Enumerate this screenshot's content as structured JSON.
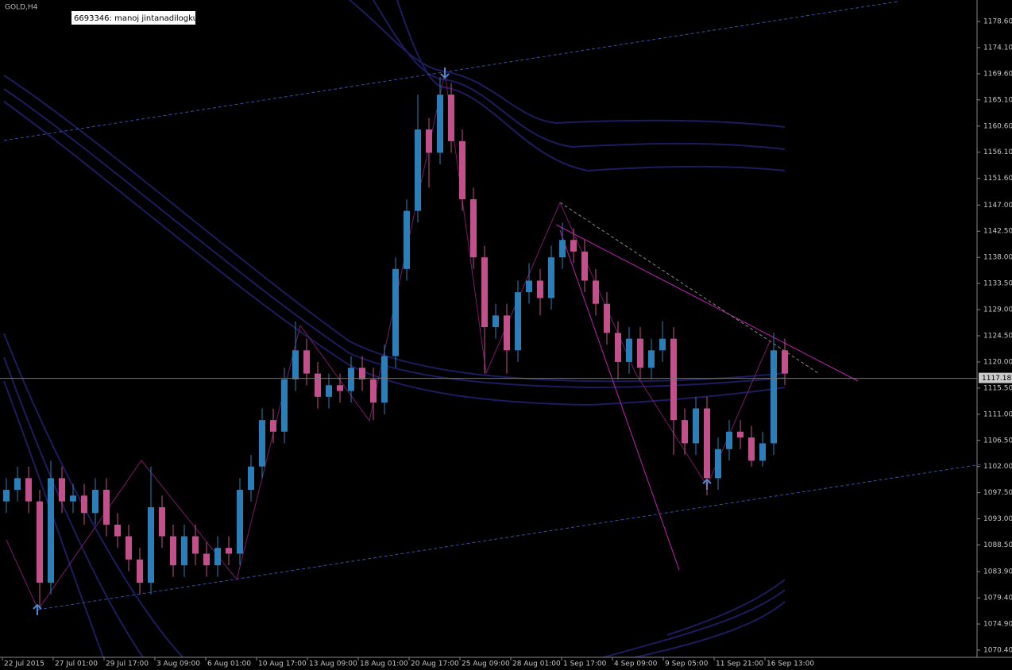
{
  "window": {
    "symbol": "GOLD,H4",
    "account": "6693346: manoj jintanadilogkul"
  },
  "chart_data": {
    "type": "candlestick",
    "open": [
      1096,
      1098,
      1100,
      1096,
      1082,
      1100,
      1096,
      1097,
      1094,
      1098,
      1092,
      1090,
      1086,
      1082,
      1095,
      1090,
      1085,
      1090,
      1087,
      1085,
      1088,
      1087,
      1098,
      1102,
      1110,
      1108,
      1117,
      1122,
      1118,
      1114,
      1116,
      1115,
      1119,
      1117,
      1113,
      1121,
      1136,
      1146,
      1160,
      1156,
      1166,
      1158,
      1148,
      1138,
      1126,
      1128,
      1122,
      1132,
      1134,
      1131,
      1138,
      1141,
      1139,
      1134,
      1130,
      1125,
      1120,
      1124,
      1119,
      1122,
      1124,
      1110,
      1106,
      1112,
      1100,
      1105,
      1108,
      1107,
      1103,
      1106,
      1122
    ],
    "high": [
      1100,
      1102,
      1102,
      1098,
      1103,
      1102,
      1099,
      1099,
      1100,
      1100,
      1094,
      1092,
      1088,
      1102,
      1097,
      1092,
      1092,
      1092,
      1089,
      1090,
      1090,
      1100,
      1104,
      1112,
      1112,
      1119,
      1127,
      1124,
      1120,
      1118,
      1118,
      1121,
      1121,
      1119,
      1123,
      1138,
      1148,
      1166,
      1162,
      1169,
      1168,
      1160,
      1150,
      1140,
      1130,
      1130,
      1134,
      1137,
      1136,
      1140,
      1144,
      1143,
      1141,
      1136,
      1132,
      1127,
      1126,
      1126,
      1124,
      1127,
      1126,
      1112,
      1114,
      1114,
      1107,
      1110,
      1110,
      1109,
      1108,
      1125,
      1124
    ],
    "low": [
      1094,
      1096,
      1094,
      1078,
      1080,
      1094,
      1094,
      1092,
      1092,
      1090,
      1088,
      1084,
      1080,
      1080,
      1088,
      1083,
      1083,
      1085,
      1083,
      1083,
      1085,
      1085,
      1096,
      1100,
      1106,
      1106,
      1115,
      1116,
      1112,
      1112,
      1113,
      1113,
      1115,
      1110,
      1111,
      1119,
      1134,
      1144,
      1150,
      1154,
      1156,
      1146,
      1136,
      1118,
      1124,
      1118,
      1120,
      1130,
      1128,
      1129,
      1136,
      1137,
      1132,
      1128,
      1123,
      1117,
      1118,
      1117,
      1117,
      1120,
      1104,
      1104,
      1104,
      1097,
      1098,
      1103,
      1105,
      1102,
      1102,
      1104,
      1116
    ],
    "close": [
      1098,
      1100,
      1096,
      1082,
      1100,
      1096,
      1097,
      1094,
      1098,
      1092,
      1090,
      1086,
      1082,
      1095,
      1090,
      1085,
      1090,
      1087,
      1085,
      1088,
      1087,
      1098,
      1102,
      1110,
      1108,
      1117,
      1122,
      1118,
      1114,
      1116,
      1115,
      1119,
      1117,
      1113,
      1121,
      1136,
      1146,
      1160,
      1156,
      1166,
      1158,
      1148,
      1138,
      1126,
      1128,
      1122,
      1132,
      1134,
      1131,
      1138,
      1141,
      1139,
      1134,
      1130,
      1125,
      1120,
      1124,
      1119,
      1122,
      1124,
      1110,
      1106,
      1112,
      1100,
      1105,
      1108,
      1107,
      1103,
      1106,
      1122,
      1118
    ],
    "up_color": "#2a7fb8",
    "down_color": "#c2508a",
    "ylim": [
      1069.17,
      1182.29
    ],
    "yticks": [
      {
        "value": 1178.6,
        "label": "1178.60"
      },
      {
        "value": 1174.1,
        "label": "1174.10"
      },
      {
        "value": 1169.6,
        "label": "1169.60"
      },
      {
        "value": 1165.1,
        "label": "1165.10"
      },
      {
        "value": 1160.6,
        "label": "1160.60"
      },
      {
        "value": 1156.1,
        "label": "1156.10"
      },
      {
        "value": 1151.6,
        "label": "1151.60"
      },
      {
        "value": 1147,
        "label": "1147.00"
      },
      {
        "value": 1142.5,
        "label": "1142.50"
      },
      {
        "value": 1138,
        "label": "1138.00"
      },
      {
        "value": 1133.5,
        "label": "1133.50"
      },
      {
        "value": 1129,
        "label": "1129.00"
      },
      {
        "value": 1124.5,
        "label": "1124.50"
      },
      {
        "value": 1120,
        "label": "1120.00"
      },
      {
        "value": 1115.5,
        "label": "1115.50"
      },
      {
        "value": 1111,
        "label": "1111.00"
      },
      {
        "value": 1106.5,
        "label": "1106.50"
      },
      {
        "value": 1102,
        "label": "1102.00"
      },
      {
        "value": 1097.5,
        "label": "1097.50"
      },
      {
        "value": 1093,
        "label": "1093.00"
      },
      {
        "value": 1088.5,
        "label": "1088.50"
      },
      {
        "value": 1083.9,
        "label": "1083.90"
      },
      {
        "value": 1079.4,
        "label": "1079.40"
      },
      {
        "value": 1074.9,
        "label": "1074.90"
      },
      {
        "value": 1070.4,
        "label": "1070.40"
      }
    ],
    "time_labels": [
      "22 Jul 2015",
      "27 Jul 01:00",
      "29 Jul 17:00",
      "3 Aug 09:00",
      "6 Aug 01:00",
      "10 Aug 17:00",
      "13 Aug 09:00",
      "18 Aug 01:00",
      "20 Aug 17:00",
      "25 Aug 09:00",
      "28 Aug 01:00",
      "1 Sep 17:00",
      "4 Sep 09:00",
      "9 Sep 05:00",
      "11 Sep 21:00",
      "16 Sep 13:00"
    ],
    "current_price": {
      "value": 1117.18,
      "label": "1117.18"
    }
  }
}
